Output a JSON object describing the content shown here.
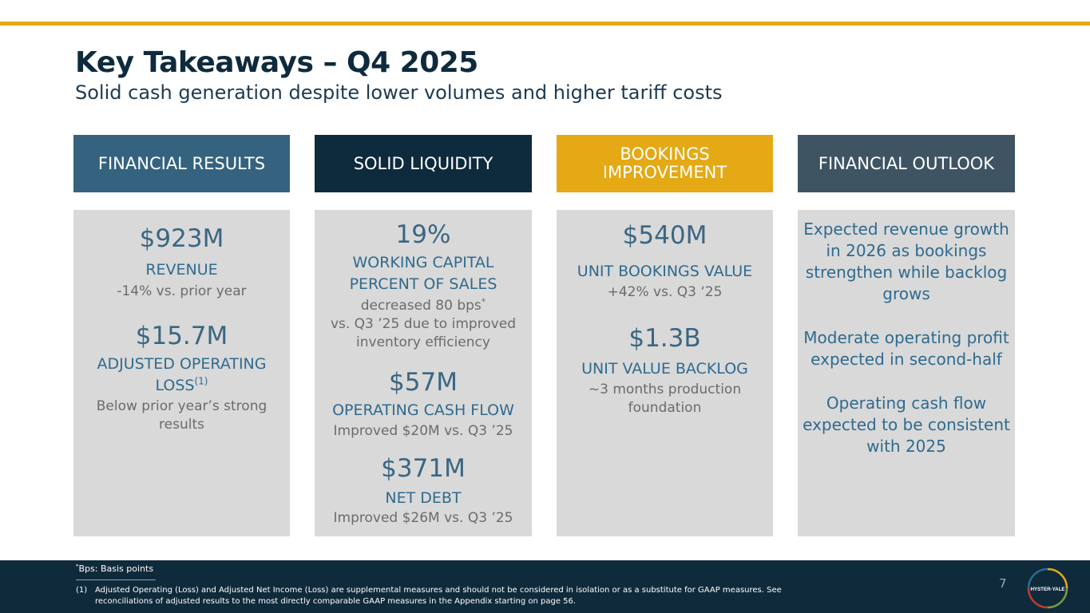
{
  "header": {
    "title": "Key Takeaways – Q4 2025",
    "subtitle": "Solid cash generation despite lower volumes and higher tariff costs"
  },
  "colors": {
    "accent_gold": "#e4a915",
    "financial_results": "#35637f",
    "solid_liquidity": "#0e2a3d",
    "bookings_improvement": "#e4a915",
    "financial_outlook": "#3f5463",
    "panel": "#d9d9d9",
    "footer": "#0f2a3b"
  },
  "columns": {
    "financial_results": {
      "header": "FINANCIAL RESULTS",
      "revenue_value": "$923M",
      "revenue_label": "REVENUE",
      "revenue_note": "-14% vs. prior year",
      "op_loss_value": "$15.7M",
      "op_loss_label_line1": "ADJUSTED OPERATING",
      "op_loss_label_line2": "LOSS",
      "op_loss_footnote_ref": "(1)",
      "op_loss_note": "Below prior year’s strong results"
    },
    "solid_liquidity": {
      "header": "SOLID LIQUIDITY",
      "wc_value": "19%",
      "wc_label": "WORKING CAPITAL PERCENT OF SALES",
      "wc_note_line1": "decreased 80 bps",
      "wc_note_marker": "*",
      "wc_note_line2": "vs. Q3 ’25 due to improved inventory efficiency",
      "ocf_value": "$57M",
      "ocf_label": "OPERATING CASH FLOW",
      "ocf_note": "Improved $20M vs. Q3 ’25",
      "debt_value": "$371M",
      "debt_label": "NET DEBT",
      "debt_note": "Improved $26M vs. Q3 ’25"
    },
    "bookings_improvement": {
      "header": "BOOKINGS IMPROVEMENT",
      "bookings_value": "$540M",
      "bookings_label": "UNIT BOOKINGS VALUE",
      "bookings_note": "+42% vs. Q3 ‘25",
      "backlog_value": "$1.3B",
      "backlog_label": "UNIT VALUE BACKLOG",
      "backlog_note": "~3 months production foundation"
    },
    "financial_outlook": {
      "header": "FINANCIAL OUTLOOK",
      "point1": "Expected revenue growth in 2026 as bookings strengthen while backlog grows",
      "point2": "Moderate operating profit expected in second-half",
      "point3": "Operating cash flow expected to be consistent with 2025"
    }
  },
  "footer": {
    "bps_marker": "*",
    "bps_note": "Bps: Basis points",
    "footnote_number": "(1)",
    "footnote_text": "Adjusted Operating (Loss) and Adjusted Net Income (Loss) are supplemental measures and should not be considered in isolation or as a substitute for GAAP measures. See reconciliations of adjusted results to the most directly comparable GAAP measures in the Appendix starting on page 56.",
    "page_number": "7",
    "logo_text": "HYSTER-YALE"
  }
}
